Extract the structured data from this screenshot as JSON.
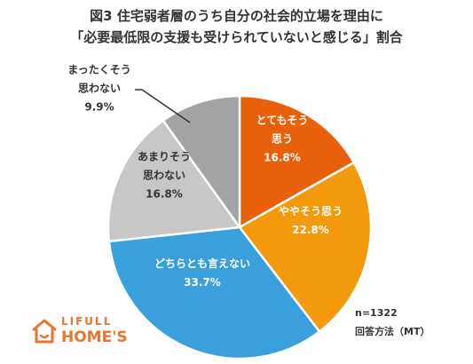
{
  "title": {
    "line1": "図3 住宅弱者層のうち自分の社会的立場を理由に",
    "line2": "「必要最低限の支援も受けられていないと感じる」割合"
  },
  "chart_data": {
    "type": "pie",
    "title": "図3 住宅弱者層のうち自分の社会的立場を理由に「必要最低限の支援も受けられていないと感じる」割合",
    "slices": [
      {
        "label": "とてもそう思う",
        "label_lines": [
          "とてもそう",
          "思う"
        ],
        "value": 16.8,
        "value_text": "16.8%",
        "color": "#e8600a",
        "text_color": "#ffffff"
      },
      {
        "label": "ややそう思う",
        "label_lines": [
          "ややそう思う"
        ],
        "value": 22.8,
        "value_text": "22.8%",
        "color": "#f29a0c",
        "text_color": "#ffffff"
      },
      {
        "label": "どちらとも言えない",
        "label_lines": [
          "どちらとも言えない"
        ],
        "value": 33.7,
        "value_text": "33.7%",
        "color": "#3aa0db",
        "text_color": "#ffffff"
      },
      {
        "label": "あまりそう思わない",
        "label_lines": [
          "あまりそう",
          "思わない"
        ],
        "value": 16.8,
        "value_text": "16.8%",
        "color": "#c7c7c7",
        "text_color": "#333333"
      },
      {
        "label": "まったくそう思わない",
        "label_lines": [
          "まったくそう",
          "思わない"
        ],
        "value": 9.9,
        "value_text": "9.9%",
        "color": "#a3a3a3",
        "text_color": "#333333"
      }
    ],
    "start": "12 o'clock, clockwise",
    "legend": "none"
  },
  "footnote": {
    "n": "n=1322",
    "method": "回答方法（MT）"
  },
  "logo": {
    "top": "LIFULL",
    "bottom": "HOME'S",
    "color": "#e8752b"
  }
}
